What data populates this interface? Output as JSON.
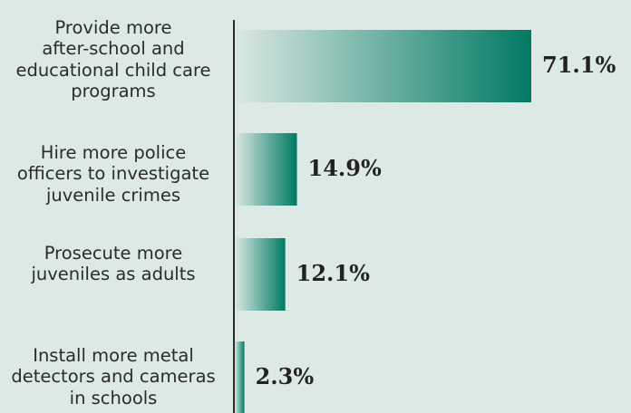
{
  "chart_data": {
    "type": "bar",
    "orientation": "horizontal",
    "categories": [
      [
        "Provide more",
        "after-school and",
        "educational child care",
        "programs"
      ],
      [
        "Hire more police",
        "officers to investigate",
        "juvenile crimes"
      ],
      [
        "Prosecute more",
        "juveniles as adults"
      ],
      [
        "Install more metal",
        "detectors and cameras",
        "in schools"
      ]
    ],
    "values": [
      71.1,
      14.9,
      12.1,
      2.3
    ],
    "value_labels": [
      "71.1%",
      "14.9%",
      "12.1%",
      "2.3%"
    ],
    "xlim": [
      0,
      71.1
    ],
    "grid": false,
    "colors": {
      "bar_start": "#dbe8e3",
      "bar_end": "#007a63",
      "axis": "#2a2a2a",
      "background": "#dde9e4"
    }
  }
}
